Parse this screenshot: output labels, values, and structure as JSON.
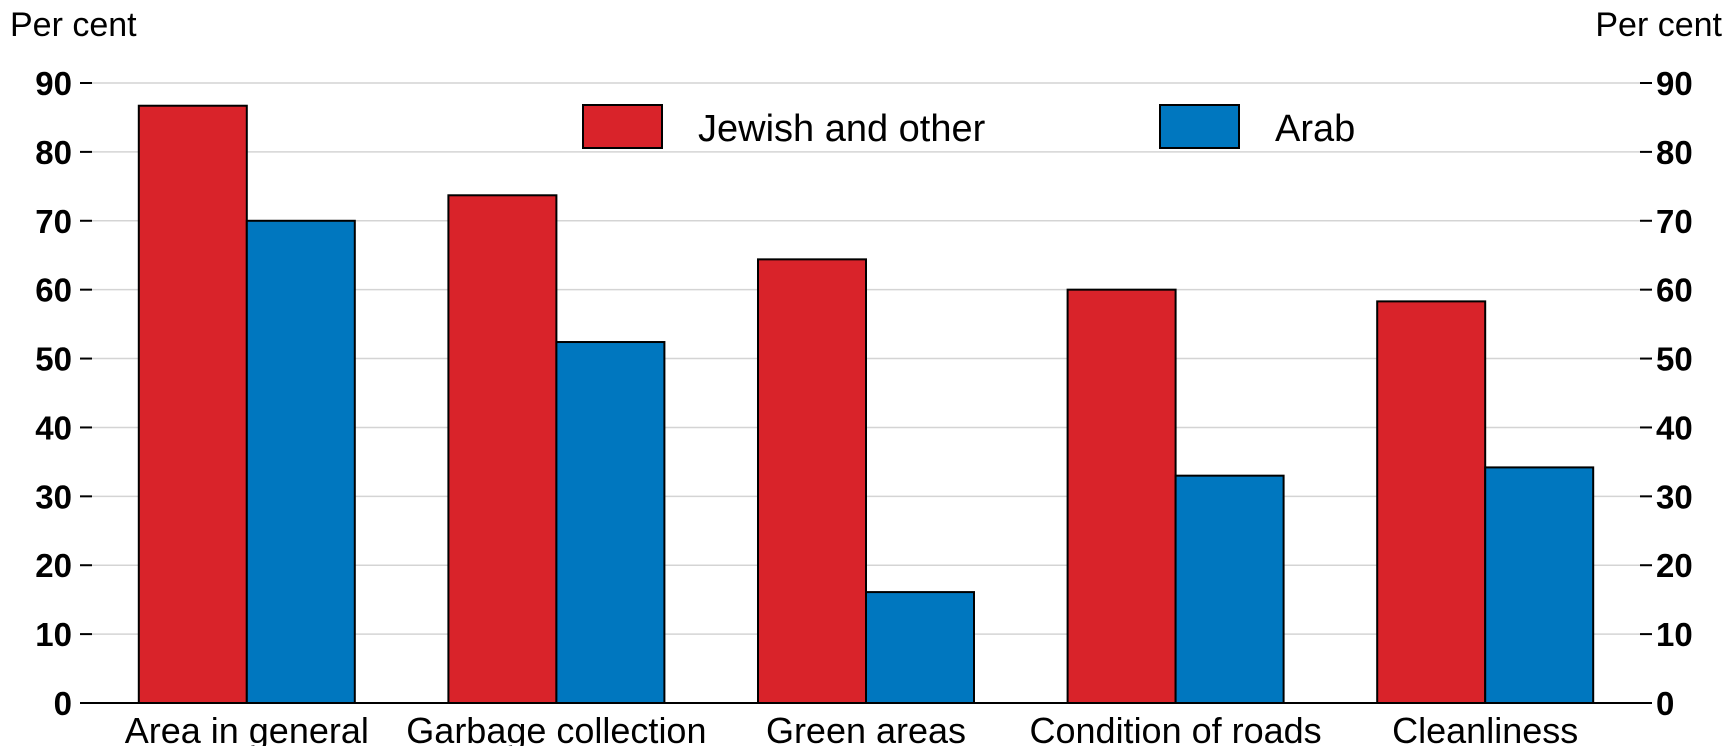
{
  "chart_data": {
    "type": "bar",
    "ylabel_left": "Per cent",
    "ylabel_right": "Per cent",
    "ylim": [
      0,
      90
    ],
    "yticks": [
      0,
      10,
      20,
      30,
      40,
      50,
      60,
      70,
      80,
      90
    ],
    "grid": true,
    "legend_position": "top-center",
    "categories": [
      "Area in general",
      "Garbage collection",
      "Green areas",
      "Condition of roads",
      "Cleanliness"
    ],
    "series": [
      {
        "name": "Jewish and other",
        "color": "#d9232a",
        "values": [
          86.7,
          73.7,
          64.4,
          60.0,
          58.3
        ]
      },
      {
        "name": "Arab",
        "color": "#0077bf",
        "values": [
          70.0,
          52.4,
          16.1,
          33.0,
          34.2
        ]
      }
    ]
  }
}
